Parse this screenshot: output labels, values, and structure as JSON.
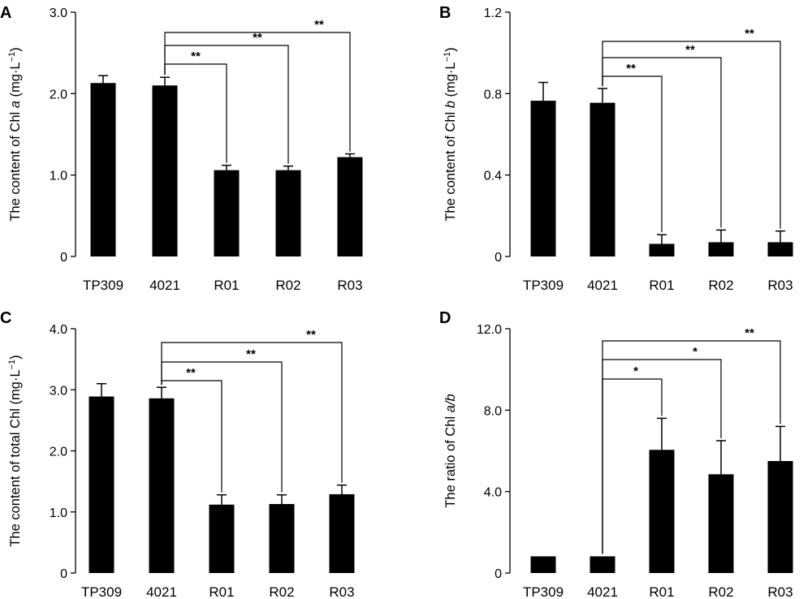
{
  "chart_data": [
    {
      "panel": "A",
      "type": "bar",
      "categories": [
        "TP309",
        "4021",
        "R01",
        "R02",
        "R03"
      ],
      "values": [
        2.13,
        2.1,
        1.06,
        1.06,
        1.22
      ],
      "errors": [
        0.09,
        0.1,
        0.06,
        0.05,
        0.04
      ],
      "ylabel_parts": [
        "The content of Chl ",
        "a",
        " (mg·L",
        "−1",
        ")"
      ],
      "ylim": [
        0,
        3.0
      ],
      "yticks": [
        "0",
        "1.0",
        "2.0",
        "3.0"
      ],
      "tick_values": [
        0,
        1.0,
        2.0,
        3.0
      ],
      "color": "#000000",
      "significance": [
        {
          "from": "4021",
          "to": "R01",
          "label": "**"
        },
        {
          "from": "4021",
          "to": "R02",
          "label": "**"
        },
        {
          "from": "4021",
          "to": "R03",
          "label": "**"
        }
      ]
    },
    {
      "panel": "B",
      "type": "bar",
      "categories": [
        "TP309",
        "4021",
        "R01",
        "R02",
        "R03"
      ],
      "values": [
        0.765,
        0.755,
        0.062,
        0.07,
        0.07
      ],
      "errors": [
        0.09,
        0.07,
        0.045,
        0.06,
        0.055
      ],
      "ylabel_parts": [
        "The content of Chl ",
        "b",
        " (mg·L",
        "−1",
        ")"
      ],
      "ylim": [
        0,
        1.2
      ],
      "yticks": [
        "0",
        "0.4",
        "0.8",
        "1.2"
      ],
      "tick_values": [
        0,
        0.4,
        0.8,
        1.2
      ],
      "color": "#000000",
      "significance": [
        {
          "from": "4021",
          "to": "R01",
          "label": "**"
        },
        {
          "from": "4021",
          "to": "R02",
          "label": "**"
        },
        {
          "from": "4021",
          "to": "R03",
          "label": "**"
        }
      ]
    },
    {
      "panel": "C",
      "type": "bar",
      "categories": [
        "TP309",
        "4021",
        "R01",
        "R02",
        "R03"
      ],
      "values": [
        2.89,
        2.86,
        1.12,
        1.13,
        1.29
      ],
      "errors": [
        0.21,
        0.18,
        0.16,
        0.15,
        0.15
      ],
      "ylabel_parts": [
        "The content of  total Chl (mg·L",
        "−1",
        ")"
      ],
      "ylim": [
        0,
        4.0
      ],
      "yticks": [
        "0",
        "1.0",
        "2.0",
        "3.0",
        "4.0"
      ],
      "tick_values": [
        0,
        1.0,
        2.0,
        3.0,
        4.0
      ],
      "color": "#000000",
      "significance": [
        {
          "from": "4021",
          "to": "R01",
          "label": "**"
        },
        {
          "from": "4021",
          "to": "R02",
          "label": "**"
        },
        {
          "from": "4021",
          "to": "R03",
          "label": "**"
        }
      ]
    },
    {
      "panel": "D",
      "type": "bar",
      "categories": [
        "TP309",
        "4021",
        "R01",
        "R02",
        "R03"
      ],
      "values": [
        0.82,
        0.82,
        6.05,
        4.85,
        5.5
      ],
      "errors": [
        0,
        0,
        1.55,
        1.65,
        1.7
      ],
      "ylabel_parts": [
        "The ratio of Chl ",
        "a/b"
      ],
      "ylim": [
        0,
        12.0
      ],
      "yticks": [
        "0",
        "4.0",
        "8.0",
        "12.0"
      ],
      "tick_values": [
        0,
        4.0,
        8.0,
        12.0
      ],
      "color": "#000000",
      "significance": [
        {
          "from": "4021",
          "to": "R01",
          "label": "*"
        },
        {
          "from": "4021",
          "to": "R02",
          "label": "*"
        },
        {
          "from": "4021",
          "to": "R03",
          "label": "**"
        }
      ]
    }
  ]
}
